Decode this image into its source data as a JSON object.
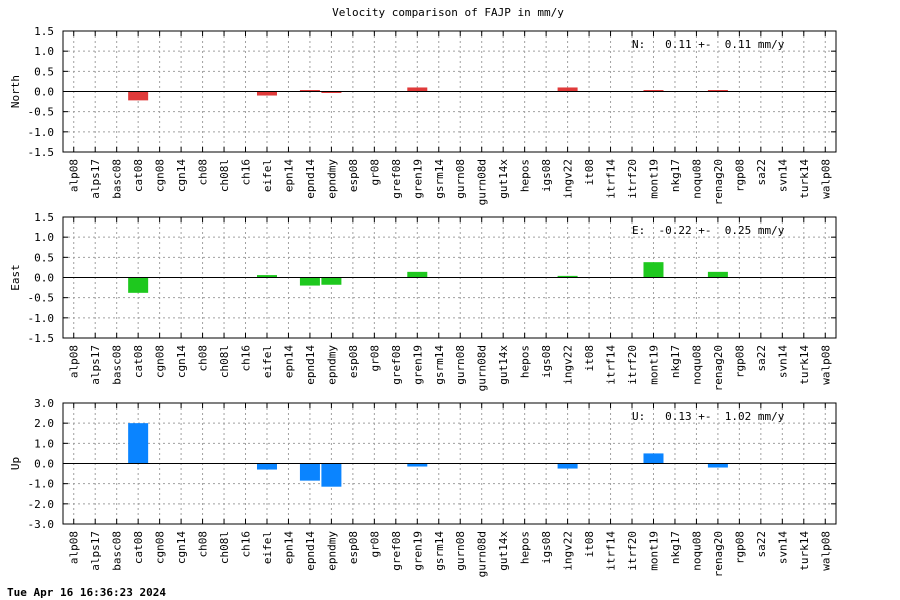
{
  "title": "Velocity comparison of FAJP in mm/y",
  "footer": "Tue Apr 16 16:36:23 2024",
  "colors": {
    "north": "#e03a3a",
    "east": "#1ec81e",
    "up": "#0a84ff",
    "grid": "#a0a0a0"
  },
  "chart_data": [
    {
      "type": "bar",
      "ylabel": "North",
      "ylim": [
        -1.5,
        1.5
      ],
      "yticks": [
        "1.5",
        "1.0",
        "0.5",
        "0.0",
        "-0.5",
        "-1.0",
        "-1.5"
      ],
      "annotation": "N:   0.11 +-  0.11 mm/y",
      "grid": true,
      "categories": [
        "alp08",
        "alps17",
        "basc08",
        "cat08",
        "cgn08",
        "cgn14",
        "ch08",
        "ch08l",
        "ch16",
        "eifel",
        "epn14",
        "epnd14",
        "epndmy",
        "esp08",
        "gr08",
        "gref08",
        "gren19",
        "gsrm14",
        "gurn08",
        "gurn08d",
        "gut14x",
        "hepos",
        "igs08",
        "ingv22",
        "it08",
        "itrf14",
        "itrf20",
        "mont19",
        "nkg17",
        "noqu08",
        "renag20",
        "rgp08",
        "sa22",
        "svn14",
        "turk14",
        "walp08"
      ],
      "values": [
        null,
        null,
        null,
        -0.22,
        null,
        null,
        null,
        null,
        null,
        -0.1,
        null,
        0.02,
        -0.03,
        null,
        null,
        null,
        0.1,
        null,
        null,
        null,
        null,
        null,
        null,
        0.1,
        null,
        null,
        null,
        0.02,
        null,
        null,
        0.02,
        null,
        null,
        null,
        null,
        null
      ]
    },
    {
      "type": "bar",
      "ylabel": "East",
      "ylim": [
        -1.5,
        1.5
      ],
      "yticks": [
        "1.5",
        "1.0",
        "0.5",
        "0.0",
        "-0.5",
        "-1.0",
        "-1.5"
      ],
      "annotation": "E:  -0.22 +-  0.25 mm/y",
      "grid": true,
      "categories": [
        "alp08",
        "alps17",
        "basc08",
        "cat08",
        "cgn08",
        "cgn14",
        "ch08",
        "ch08l",
        "ch16",
        "eifel",
        "epn14",
        "epnd14",
        "epndmy",
        "esp08",
        "gr08",
        "gref08",
        "gren19",
        "gsrm14",
        "gurn08",
        "gurn08d",
        "gut14x",
        "hepos",
        "igs08",
        "ingv22",
        "it08",
        "itrf14",
        "itrf20",
        "mont19",
        "nkg17",
        "noqu08",
        "renag20",
        "rgp08",
        "sa22",
        "svn14",
        "turk14",
        "walp08"
      ],
      "values": [
        null,
        null,
        null,
        -0.38,
        null,
        null,
        null,
        null,
        null,
        0.06,
        null,
        -0.2,
        -0.18,
        null,
        null,
        null,
        0.14,
        null,
        null,
        null,
        null,
        null,
        null,
        0.04,
        null,
        null,
        null,
        0.38,
        null,
        null,
        0.14,
        null,
        null,
        null,
        null,
        null
      ]
    },
    {
      "type": "bar",
      "ylabel": "Up",
      "ylim": [
        -3.0,
        3.0
      ],
      "yticks": [
        "3.0",
        "2.0",
        "1.0",
        "0.0",
        "-1.0",
        "-2.0",
        "-3.0"
      ],
      "annotation": "U:   0.13 +-  1.02 mm/y",
      "grid": true,
      "categories": [
        "alp08",
        "alps17",
        "basc08",
        "cat08",
        "cgn08",
        "cgn14",
        "ch08",
        "ch08l",
        "ch16",
        "eifel",
        "epn14",
        "epnd14",
        "epndmy",
        "esp08",
        "gr08",
        "gref08",
        "gren19",
        "gsrm14",
        "gurn08",
        "gurn08d",
        "gut14x",
        "hepos",
        "igs08",
        "ingv22",
        "it08",
        "itrf14",
        "itrf20",
        "mont19",
        "nkg17",
        "noqu08",
        "renag20",
        "rgp08",
        "sa22",
        "svn14",
        "turk14",
        "walp08"
      ],
      "values": [
        null,
        null,
        null,
        2.0,
        null,
        null,
        null,
        null,
        null,
        -0.3,
        null,
        -0.85,
        -1.15,
        null,
        null,
        null,
        -0.15,
        null,
        null,
        null,
        null,
        null,
        null,
        -0.25,
        null,
        null,
        null,
        0.5,
        null,
        null,
        -0.2,
        null,
        null,
        null,
        null,
        null
      ]
    }
  ]
}
